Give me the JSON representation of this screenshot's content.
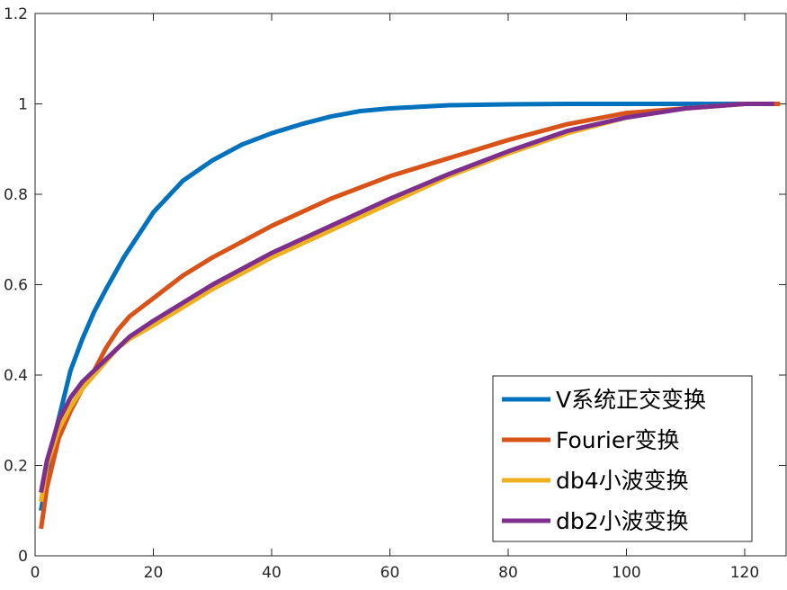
{
  "chart_data": {
    "type": "line",
    "title": "",
    "xlabel": "",
    "ylabel": "",
    "xlim": [
      0,
      127
    ],
    "ylim": [
      0,
      1.2
    ],
    "xticks": [
      0,
      20,
      40,
      60,
      80,
      100,
      120
    ],
    "yticks": [
      0,
      0.2,
      0.4,
      0.6,
      0.8,
      1,
      1.2
    ],
    "xtick_labels": [
      "0",
      "20",
      "40",
      "60",
      "80",
      "100",
      "120"
    ],
    "ytick_labels": [
      "0",
      "0.2",
      "0.4",
      "0.6",
      "0.8",
      "1",
      "1.2"
    ],
    "grid": false,
    "legend_position": "bottom-right",
    "series": [
      {
        "name": "V系统正交变换",
        "color": "#0072BD",
        "x": [
          1,
          3,
          6,
          8,
          10,
          12,
          15,
          20,
          25,
          30,
          35,
          40,
          45,
          50,
          55,
          60,
          70,
          80,
          90,
          100,
          110,
          120,
          125
        ],
        "y": [
          0.1,
          0.25,
          0.41,
          0.48,
          0.54,
          0.59,
          0.66,
          0.76,
          0.83,
          0.875,
          0.91,
          0.935,
          0.955,
          0.972,
          0.984,
          0.99,
          0.997,
          0.999,
          1.0,
          1.0,
          1.0,
          1.0,
          1.0
        ]
      },
      {
        "name": "Fourier变换",
        "color": "#D95319",
        "x": [
          1,
          2,
          4,
          6,
          8,
          10,
          12,
          14,
          16,
          20,
          25,
          30,
          40,
          50,
          60,
          70,
          80,
          90,
          100,
          110,
          120,
          126
        ],
        "y": [
          0.06,
          0.15,
          0.26,
          0.32,
          0.37,
          0.41,
          0.46,
          0.5,
          0.53,
          0.57,
          0.62,
          0.66,
          0.73,
          0.79,
          0.84,
          0.88,
          0.92,
          0.955,
          0.98,
          0.99,
          1.0,
          1.0
        ]
      },
      {
        "name": "db4小波变换",
        "color": "#EDB120",
        "x": [
          1,
          2,
          4,
          6,
          8,
          10,
          12,
          14,
          16,
          20,
          25,
          30,
          40,
          50,
          60,
          70,
          80,
          90,
          100,
          110,
          120,
          125
        ],
        "y": [
          0.12,
          0.2,
          0.28,
          0.33,
          0.37,
          0.4,
          0.43,
          0.46,
          0.48,
          0.51,
          0.55,
          0.59,
          0.66,
          0.72,
          0.78,
          0.84,
          0.89,
          0.935,
          0.97,
          0.99,
          1.0,
          1.0
        ]
      },
      {
        "name": "db2小波变换",
        "color": "#7E2F8E",
        "x": [
          1,
          2,
          4,
          6,
          8,
          10,
          12,
          14,
          16,
          20,
          25,
          30,
          40,
          50,
          60,
          70,
          80,
          90,
          100,
          110,
          120,
          125
        ],
        "y": [
          0.14,
          0.21,
          0.3,
          0.35,
          0.385,
          0.41,
          0.435,
          0.46,
          0.485,
          0.52,
          0.56,
          0.6,
          0.67,
          0.73,
          0.79,
          0.845,
          0.895,
          0.94,
          0.97,
          0.99,
          1.0,
          1.0
        ]
      }
    ]
  }
}
